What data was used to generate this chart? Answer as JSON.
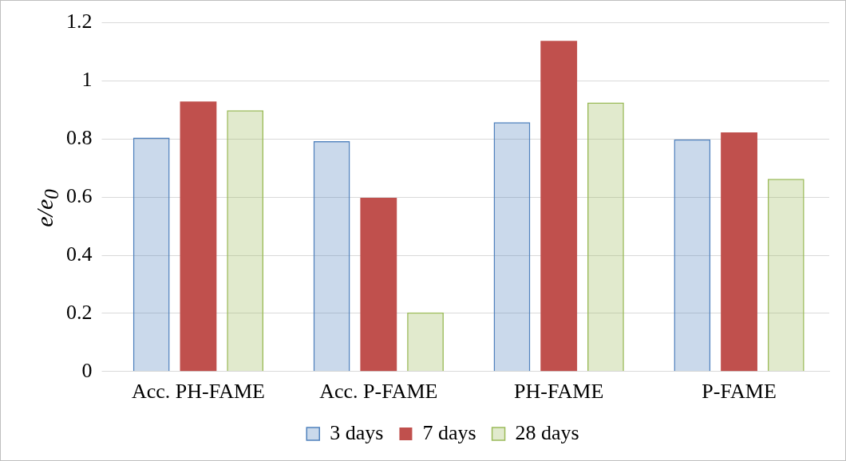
{
  "chart_data": {
    "type": "bar",
    "ylabel": "e/e$_{0}$",
    "categories": [
      "Acc. PH-FAME",
      "Acc. P-FAME",
      "PH-FAME",
      "P-FAME"
    ],
    "series": [
      {
        "name": "3 days",
        "color": "#4f81bd",
        "values": [
          0.805,
          0.793,
          0.858,
          0.799
        ]
      },
      {
        "name": "7 days",
        "color": "#c0504d",
        "values": [
          0.929,
          0.598,
          1.138,
          0.823
        ]
      },
      {
        "name": "28 days",
        "color": "#9bbb59",
        "values": [
          0.899,
          0.203,
          0.926,
          0.663
        ]
      }
    ],
    "ylim": [
      0,
      1.2
    ],
    "yticks": [
      0,
      0.2,
      0.4,
      0.6,
      0.8,
      1,
      1.2
    ],
    "grid": "y",
    "legend": "bottom"
  }
}
